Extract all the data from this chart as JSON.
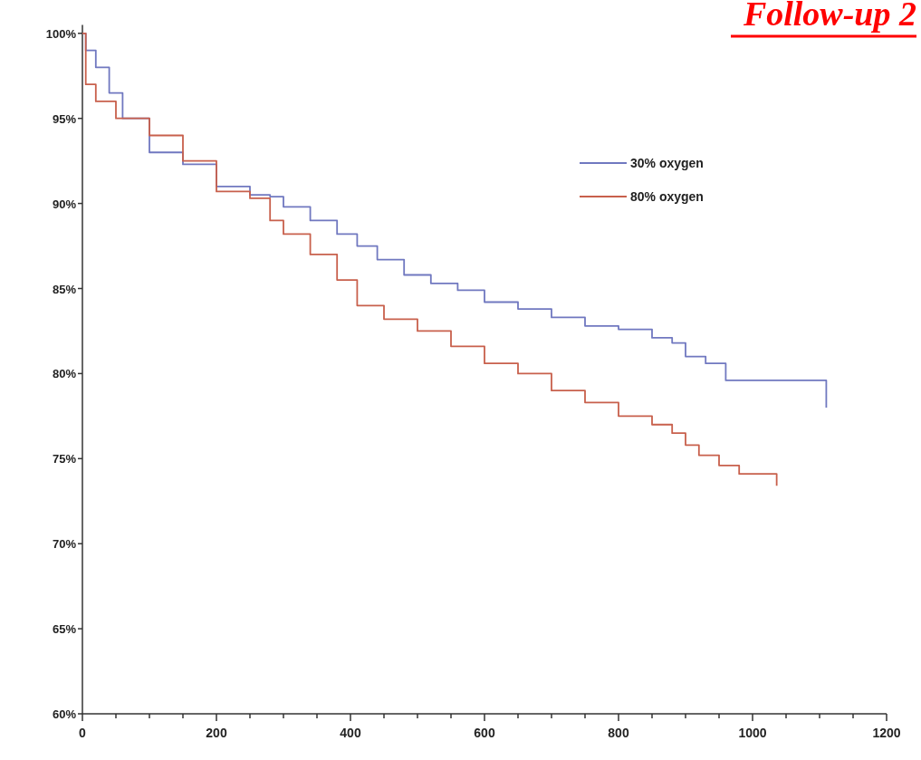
{
  "chart_data": {
    "type": "step",
    "title": "Follow-up 2",
    "xlim": [
      0,
      1200
    ],
    "ylim": [
      60,
      100.5
    ],
    "xticks": [
      0,
      {
        "value": 50,
        "label": null
      },
      {
        "value": 100,
        "label": null
      },
      {
        "value": 150,
        "label": null
      },
      200,
      {
        "value": 250,
        "label": null
      },
      {
        "value": 300,
        "label": null
      },
      {
        "value": 350,
        "label": null
      },
      400,
      {
        "value": 450,
        "label": null
      },
      {
        "value": 500,
        "label": null
      },
      {
        "value": 550,
        "label": null
      },
      600,
      {
        "value": 650,
        "label": null
      },
      {
        "value": 700,
        "label": null
      },
      {
        "value": 750,
        "label": null
      },
      800,
      {
        "value": 850,
        "label": null
      },
      {
        "value": 900,
        "label": null
      },
      {
        "value": 950,
        "label": null
      },
      1000,
      {
        "value": 1050,
        "label": null
      },
      {
        "value": 1100,
        "label": null
      },
      {
        "value": 1150,
        "label": null
      },
      1200
    ],
    "yticks": [
      {
        "value": 60,
        "label": "60%"
      },
      {
        "value": 65,
        "label": "65%"
      },
      {
        "value": 70,
        "label": "70%"
      },
      {
        "value": 75,
        "label": "75%"
      },
      {
        "value": 80,
        "label": "80%"
      },
      {
        "value": 85,
        "label": "85%"
      },
      {
        "value": 90,
        "label": "90%"
      },
      {
        "value": 95,
        "label": "95%"
      },
      {
        "value": 100,
        "label": "100%"
      }
    ],
    "grid": false,
    "legend": "top right",
    "line_style": "solid",
    "series": [
      {
        "name": "30% oxygen",
        "color": "#7078c0",
        "x": [
          0,
          5,
          20,
          40,
          60,
          100,
          150,
          200,
          250,
          280,
          300,
          340,
          380,
          410,
          440,
          480,
          520,
          560,
          600,
          650,
          700,
          750,
          800,
          850,
          880,
          900,
          930,
          960,
          1110,
          1110
        ],
        "values": [
          100,
          99,
          98,
          96.5,
          95,
          93,
          92.3,
          91,
          90.5,
          90.4,
          89.8,
          89,
          88.2,
          87.5,
          86.7,
          85.8,
          85.3,
          84.9,
          84.2,
          83.8,
          83.3,
          82.8,
          82.6,
          82.1,
          81.8,
          81,
          80.6,
          79.6,
          79.6,
          78
        ]
      },
      {
        "name": "80% oxygen",
        "color": "#c8604c",
        "x": [
          0,
          5,
          20,
          50,
          100,
          150,
          200,
          250,
          280,
          300,
          340,
          380,
          410,
          450,
          500,
          550,
          600,
          650,
          700,
          750,
          800,
          850,
          880,
          900,
          920,
          950,
          980,
          1036,
          1036
        ],
        "values": [
          100,
          97,
          96,
          95,
          94,
          92.5,
          90.7,
          90.3,
          89,
          88.2,
          87,
          85.5,
          84,
          83.2,
          82.5,
          81.6,
          80.6,
          80,
          79,
          78.3,
          77.5,
          77,
          76.5,
          75.8,
          75.2,
          74.6,
          74.1,
          74.1,
          73.4
        ]
      }
    ]
  }
}
